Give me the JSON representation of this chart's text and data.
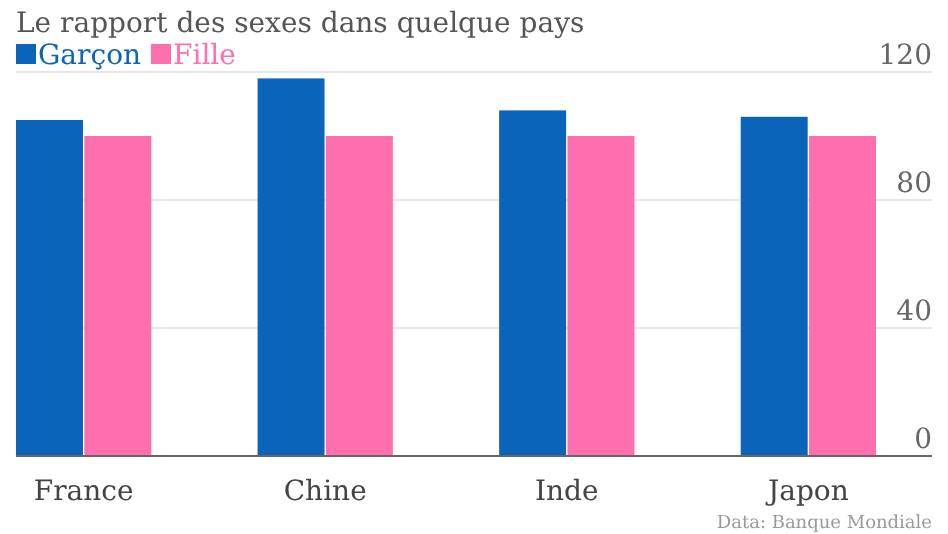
{
  "chart_data": {
    "type": "bar",
    "title": "Le rapport des sexes dans quelque pays",
    "categories": [
      "France",
      "Chine",
      "Inde",
      "Japon"
    ],
    "series": [
      {
        "name": "Garçon",
        "color": "#0a64b9",
        "values": [
          105,
          118,
          108,
          106
        ]
      },
      {
        "name": "Fille",
        "color": "#ff6fae",
        "values": [
          100,
          100,
          100,
          100
        ]
      }
    ],
    "ylim": [
      0,
      120
    ],
    "yticks": [
      0,
      40,
      80,
      120
    ],
    "grid": "y",
    "legend": "top left",
    "annotations": [
      "Data: Banque Mondiale"
    ]
  }
}
